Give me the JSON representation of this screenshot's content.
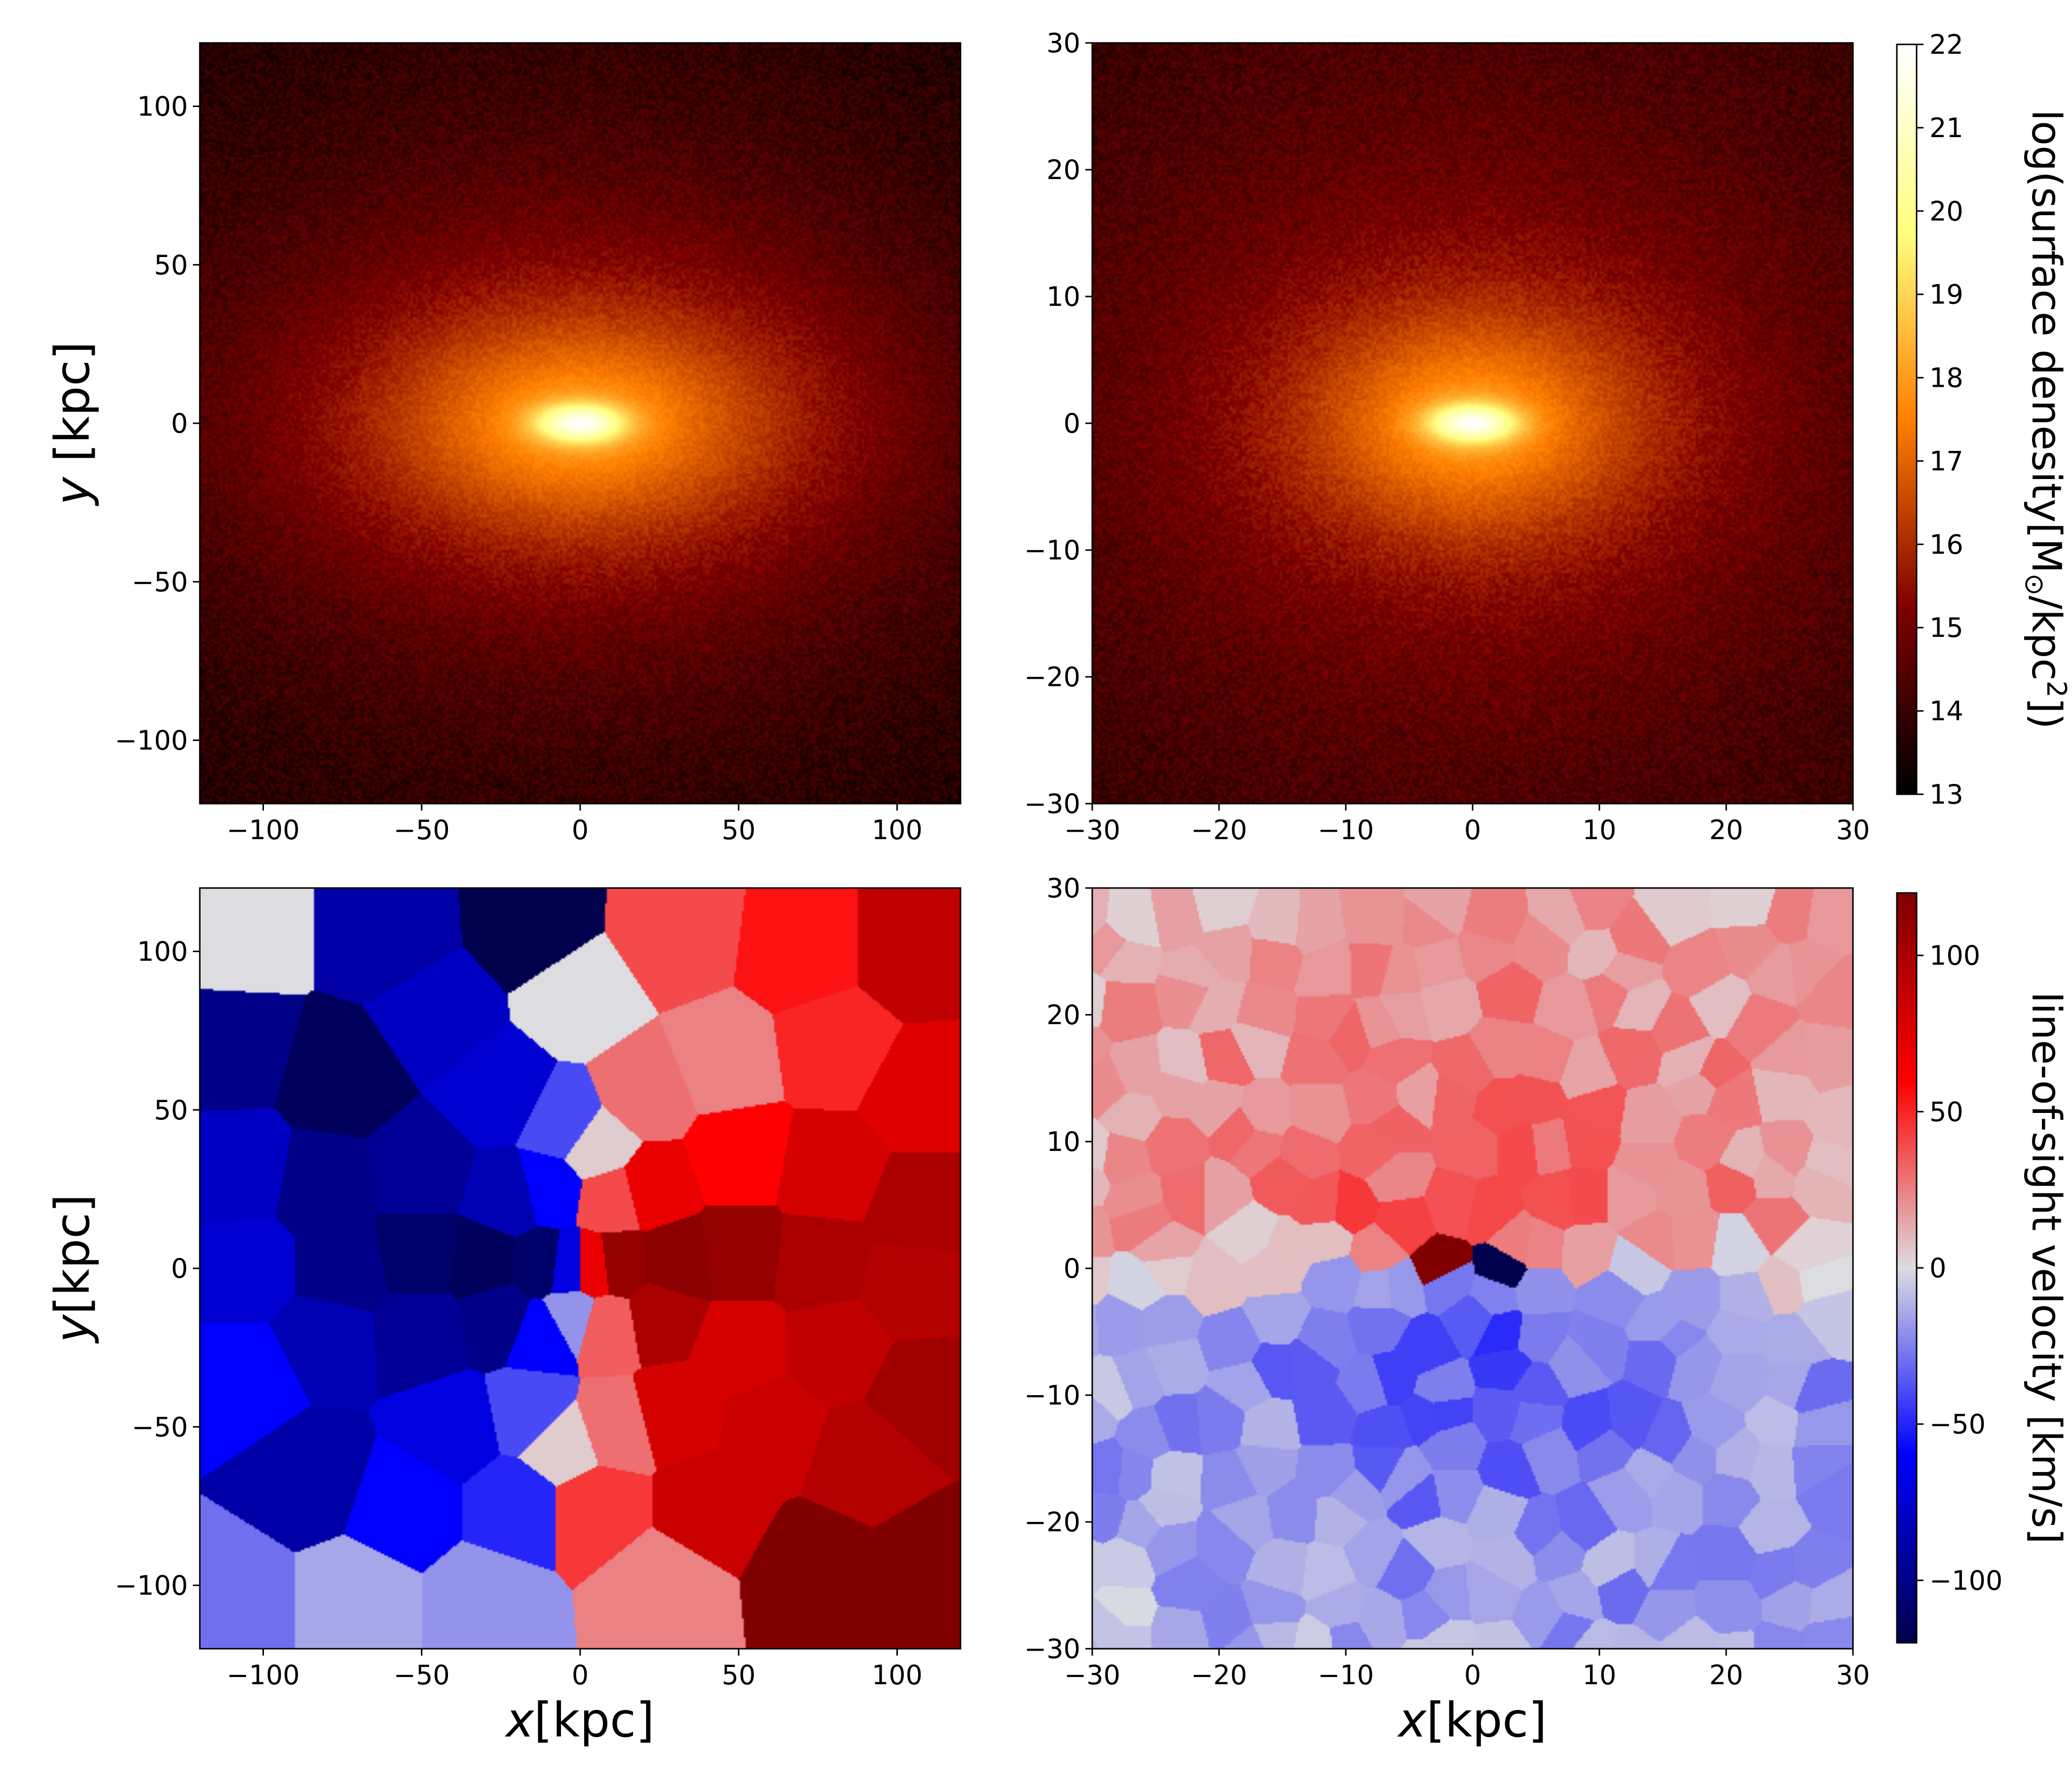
{
  "chart_data": [
    {
      "id": "density_wide",
      "type": "heatmap",
      "quantity": "log surface density",
      "xlim": [
        -120,
        120
      ],
      "ylim": [
        -120,
        120
      ],
      "xticks": [
        -100,
        -50,
        0,
        50,
        100
      ],
      "yticks": [
        -100,
        -50,
        0,
        50,
        100
      ],
      "xlabel": "",
      "ylabel_italic": "y",
      "ylabel_rest": " [kpc]",
      "field": {
        "center": [
          0,
          0
        ],
        "peak": 22,
        "floor": 13,
        "core_scale": [
          14,
          6
        ],
        "disk_scale": [
          75,
          38
        ],
        "halo_scale": [
          140,
          110
        ]
      }
    },
    {
      "id": "density_zoom",
      "type": "heatmap",
      "quantity": "log surface density",
      "xlim": [
        -30,
        30
      ],
      "ylim": [
        -30,
        30
      ],
      "xticks": [
        -30,
        -20,
        -10,
        0,
        10,
        20,
        30
      ],
      "yticks": [
        -30,
        -20,
        -10,
        0,
        10,
        20,
        30
      ],
      "xlabel": "",
      "ylabel": "",
      "field": {
        "center": [
          0,
          0
        ],
        "peak": 22,
        "floor": 13,
        "core_scale": [
          3.5,
          1.5
        ],
        "disk_scale": [
          14,
          9
        ],
        "halo_scale": [
          45,
          40
        ]
      }
    },
    {
      "id": "velocity_wide",
      "type": "heatmap",
      "quantity": "line-of-sight velocity (Voronoi bins)",
      "xlim": [
        -120,
        120
      ],
      "ylim": [
        -120,
        120
      ],
      "xticks": [
        -100,
        -50,
        0,
        50,
        100
      ],
      "yticks": [
        -100,
        -50,
        0,
        50,
        100
      ],
      "xlabel_italic": "x",
      "xlabel_rest": "[kpc]",
      "ylabel_italic": "y",
      "ylabel_rest": "[kpc]",
      "bins": [
        {
          "x": -108,
          "y": 105,
          "v": 0
        },
        {
          "x": -60,
          "y": 105,
          "v": -90
        },
        {
          "x": -15,
          "y": 108,
          "v": -120
        },
        {
          "x": 0,
          "y": 85,
          "v": 0
        },
        {
          "x": 30,
          "y": 105,
          "v": 40
        },
        {
          "x": 70,
          "y": 100,
          "v": 55
        },
        {
          "x": 105,
          "y": 100,
          "v": 90
        },
        {
          "x": -75,
          "y": 60,
          "v": -115
        },
        {
          "x": -110,
          "y": 70,
          "v": -100
        },
        {
          "x": -45,
          "y": 80,
          "v": -80
        },
        {
          "x": -25,
          "y": 55,
          "v": -75
        },
        {
          "x": -5,
          "y": 45,
          "v": -40
        },
        {
          "x": 5,
          "y": 38,
          "v": 5
        },
        {
          "x": 20,
          "y": 55,
          "v": 30
        },
        {
          "x": 45,
          "y": 65,
          "v": 25
        },
        {
          "x": 80,
          "y": 70,
          "v": 50
        },
        {
          "x": 108,
          "y": 55,
          "v": 75
        },
        {
          "x": -108,
          "y": 30,
          "v": -80
        },
        {
          "x": -80,
          "y": 25,
          "v": -100
        },
        {
          "x": -50,
          "y": 30,
          "v": -95
        },
        {
          "x": -22,
          "y": 22,
          "v": -85
        },
        {
          "x": -10,
          "y": 25,
          "v": -60
        },
        {
          "x": 10,
          "y": 22,
          "v": 40
        },
        {
          "x": 22,
          "y": 25,
          "v": 70
        },
        {
          "x": 50,
          "y": 35,
          "v": 60
        },
        {
          "x": 78,
          "y": 30,
          "v": 80
        },
        {
          "x": 108,
          "y": 18,
          "v": 100
        },
        {
          "x": -105,
          "y": 0,
          "v": -75
        },
        {
          "x": -75,
          "y": 0,
          "v": -100
        },
        {
          "x": -50,
          "y": 5,
          "v": -110
        },
        {
          "x": -30,
          "y": 2,
          "v": -115
        },
        {
          "x": -12,
          "y": 1,
          "v": -110
        },
        {
          "x": -4,
          "y": 0,
          "v": -70
        },
        {
          "x": 4,
          "y": 0,
          "v": 70
        },
        {
          "x": 12,
          "y": 1,
          "v": 110
        },
        {
          "x": 30,
          "y": 2,
          "v": 115
        },
        {
          "x": 50,
          "y": 5,
          "v": 110
        },
        {
          "x": 75,
          "y": 2,
          "v": 100
        },
        {
          "x": 105,
          "y": -5,
          "v": 95
        },
        {
          "x": -105,
          "y": -35,
          "v": -60
        },
        {
          "x": -80,
          "y": -22,
          "v": -85
        },
        {
          "x": -50,
          "y": -20,
          "v": -95
        },
        {
          "x": -25,
          "y": -15,
          "v": -100
        },
        {
          "x": -12,
          "y": -20,
          "v": -60
        },
        {
          "x": -3,
          "y": -15,
          "v": -20
        },
        {
          "x": 8,
          "y": -18,
          "v": 35
        },
        {
          "x": 25,
          "y": -15,
          "v": 100
        },
        {
          "x": 50,
          "y": -25,
          "v": 80
        },
        {
          "x": 80,
          "y": -25,
          "v": 90
        },
        {
          "x": 108,
          "y": -40,
          "v": 105
        },
        {
          "x": -85,
          "y": -65,
          "v": -90
        },
        {
          "x": -40,
          "y": -50,
          "v": -70
        },
        {
          "x": -15,
          "y": -45,
          "v": -40
        },
        {
          "x": -5,
          "y": -55,
          "v": 5
        },
        {
          "x": 10,
          "y": -50,
          "v": 30
        },
        {
          "x": 30,
          "y": -45,
          "v": 80
        },
        {
          "x": 60,
          "y": -50,
          "v": 85
        },
        {
          "x": 90,
          "y": -60,
          "v": 95
        },
        {
          "x": -110,
          "y": -105,
          "v": -30
        },
        {
          "x": -70,
          "y": -105,
          "v": -15
        },
        {
          "x": -30,
          "y": -105,
          "v": -20
        },
        {
          "x": 5,
          "y": -75,
          "v": 45
        },
        {
          "x": 25,
          "y": -100,
          "v": 25
        },
        {
          "x": 40,
          "y": -75,
          "v": 85
        },
        {
          "x": 75,
          "y": -95,
          "v": 120
        },
        {
          "x": 110,
          "y": -95,
          "v": 120
        },
        {
          "x": -55,
          "y": -75,
          "v": -60
        },
        {
          "x": -20,
          "y": -75,
          "v": -50
        }
      ]
    },
    {
      "id": "velocity_zoom",
      "type": "heatmap",
      "quantity": "line-of-sight velocity (Voronoi bins)",
      "xlim": [
        -30,
        30
      ],
      "ylim": [
        -30,
        30
      ],
      "xticks": [
        -30,
        -20,
        -10,
        0,
        10,
        20,
        30
      ],
      "yticks": [
        -30,
        -20,
        -10,
        0,
        10,
        20,
        30
      ],
      "xlabel_italic": "x",
      "xlabel_rest": "[kpc]",
      "ylabel": "",
      "field": {
        "v_top": 30,
        "v_bottom": -30,
        "edge_pull": 20,
        "core_peak": 120,
        "core_offset": 2.5,
        "core_size": [
          1.5,
          1.0
        ]
      }
    }
  ],
  "colorbars": [
    {
      "id": "density_colorbar",
      "colormap": "afmhot",
      "range": [
        13,
        22
      ],
      "ticks": [
        13,
        14,
        15,
        16,
        17,
        18,
        19,
        20,
        21,
        22
      ],
      "label": "log(surface denesity[M",
      "label_sub": "⊙",
      "label_mid": "/kpc",
      "label_sup": "2",
      "label_end": "])"
    },
    {
      "id": "velocity_colorbar",
      "colormap": "seismic",
      "range": [
        -120,
        120
      ],
      "ticks": [
        -100,
        -50,
        0,
        50,
        100
      ],
      "label": "line-of-sight velocity [km/s]"
    }
  ]
}
